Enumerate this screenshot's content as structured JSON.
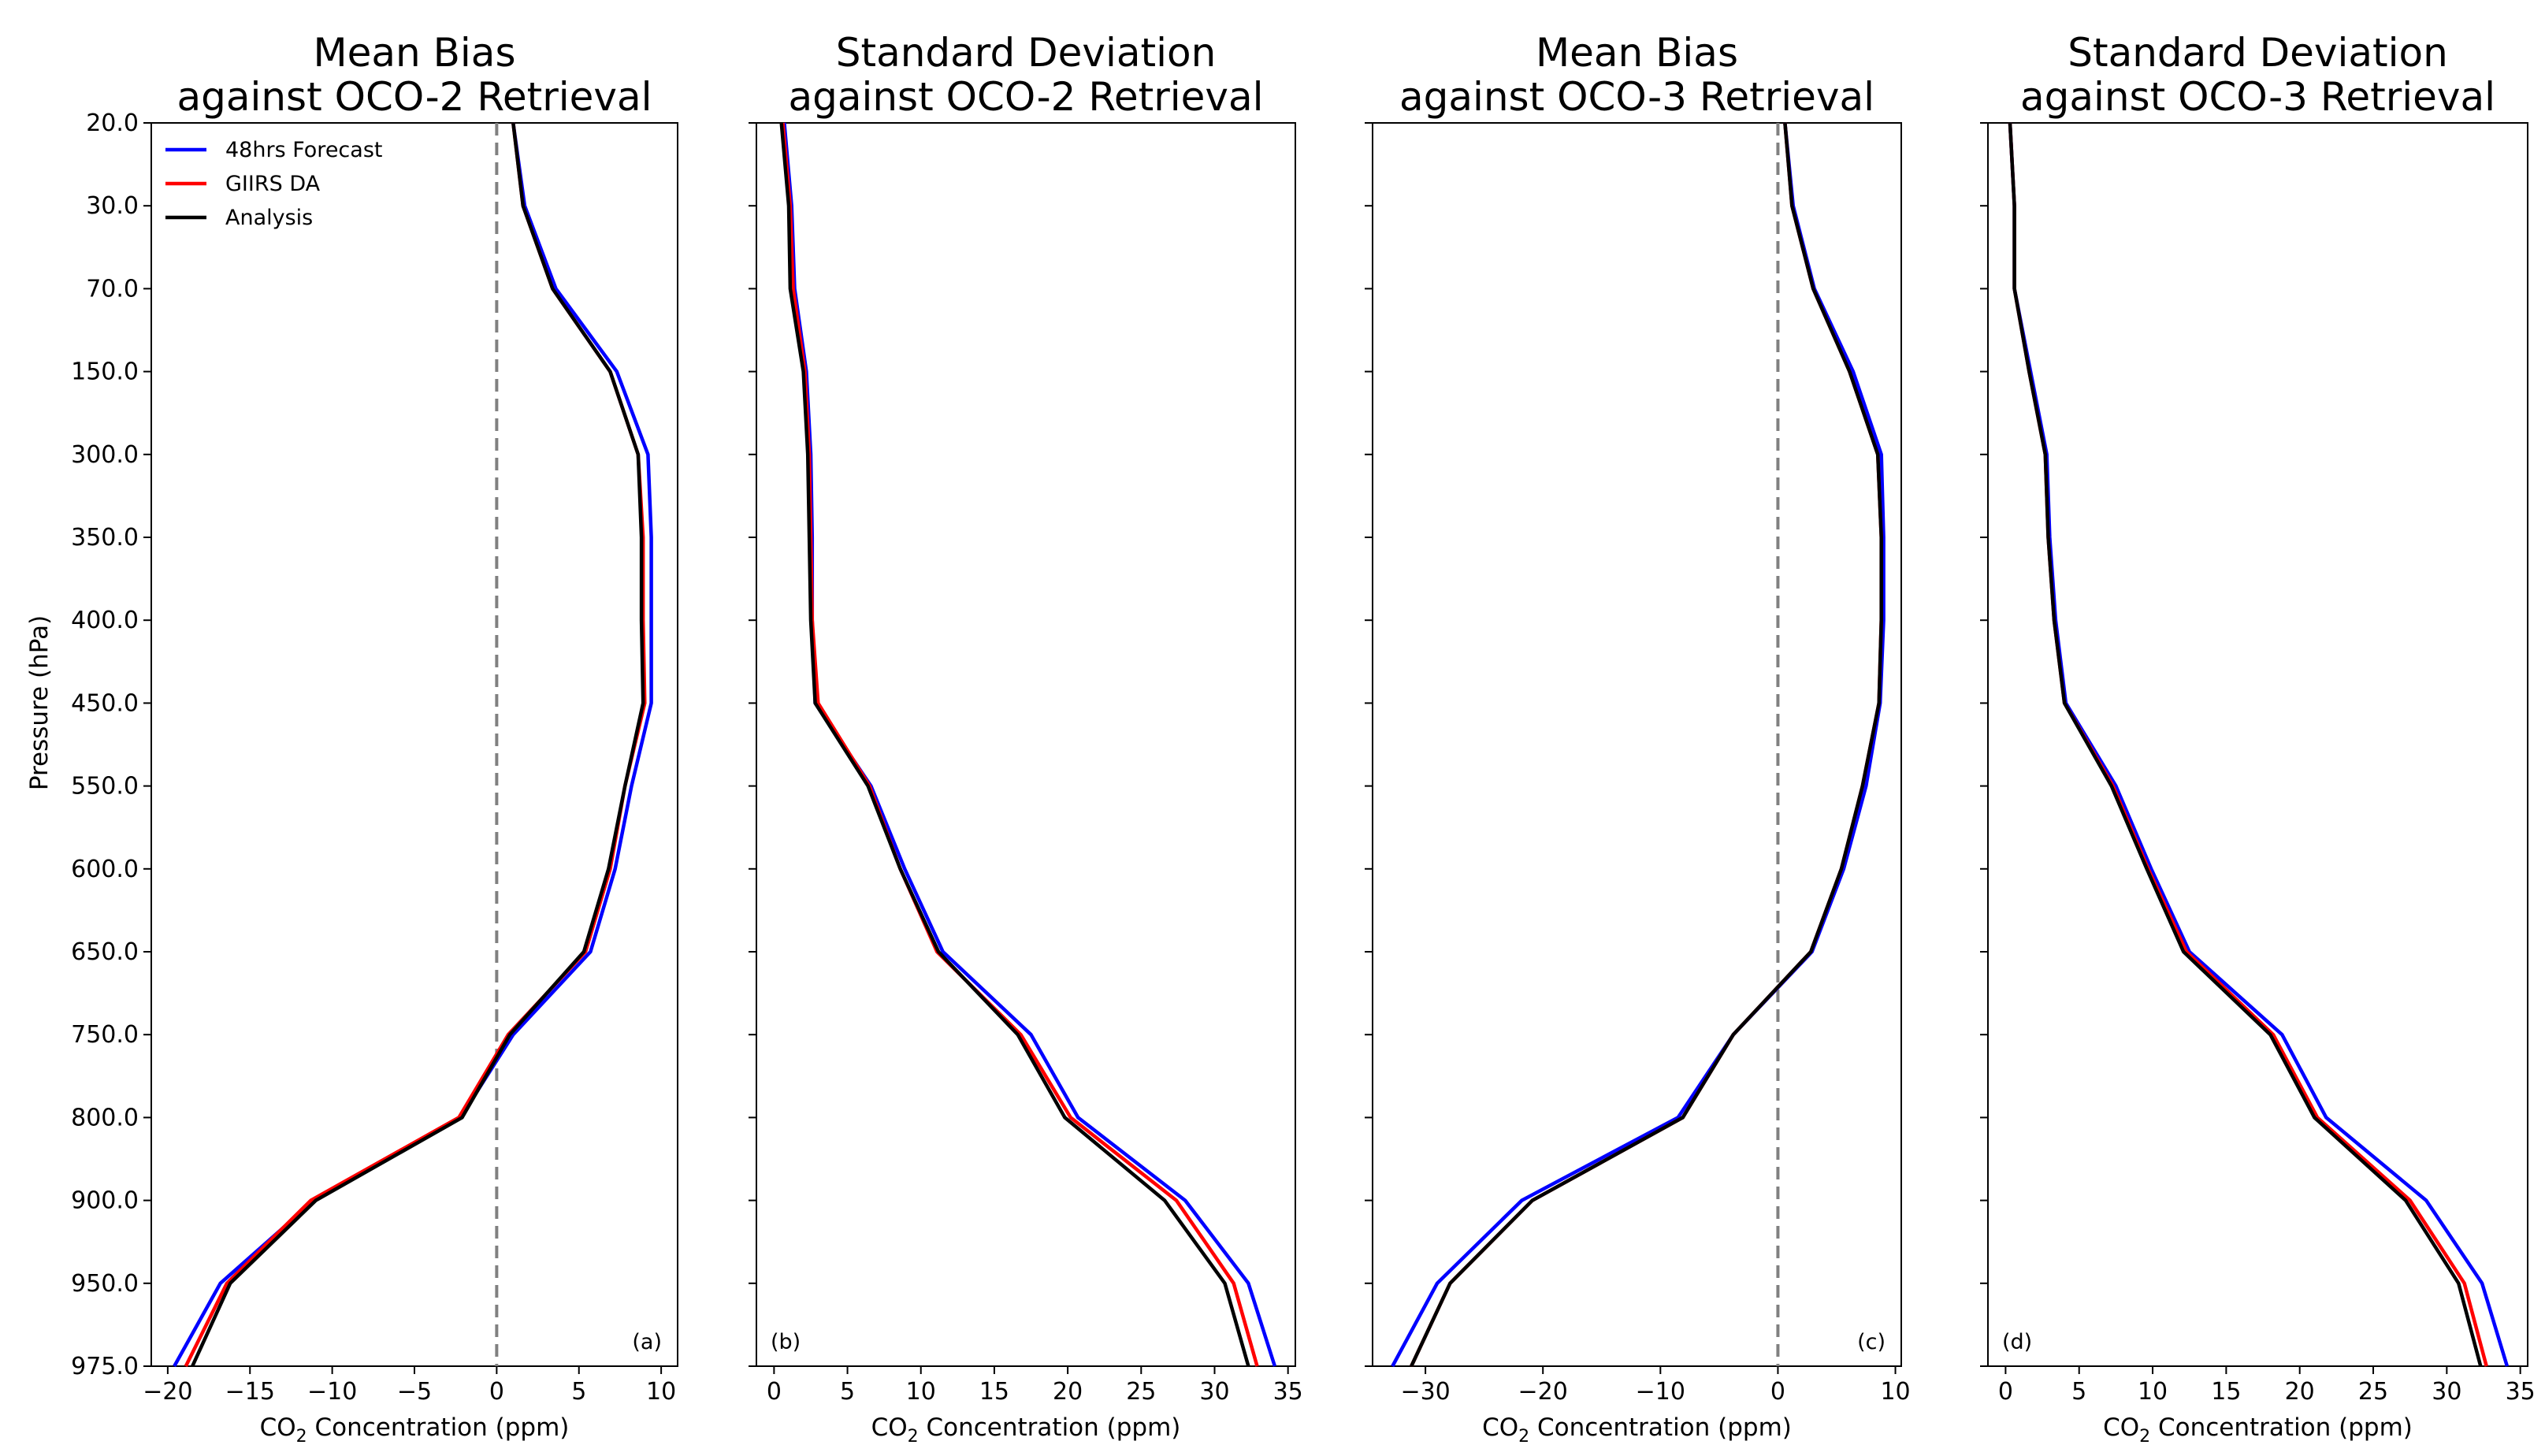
{
  "figure": {
    "ylabel": "Pressure (hPa)",
    "pressure_levels": [
      "20.0",
      "30.0",
      "70.0",
      "150.0",
      "300.0",
      "350.0",
      "400.0",
      "450.0",
      "550.0",
      "600.0",
      "650.0",
      "750.0",
      "800.0",
      "900.0",
      "950.0",
      "975.0"
    ],
    "legend": [
      {
        "label": "48hrs Forecast",
        "color": "#0000ff"
      },
      {
        "label": "GIIRS DA",
        "color": "#ff0000"
      },
      {
        "label": "Analysis",
        "color": "#000000"
      }
    ]
  },
  "chart_data": [
    {
      "type": "line",
      "title_line1": "Mean Bias",
      "title_line2": "against OCO-2 Retrieval",
      "panel_label": "(a)",
      "xlabel_prefix": "CO",
      "xlabel_sub": "2",
      "xlabel_suffix": " Concentration (ppm)",
      "xlim": [
        -21,
        11
      ],
      "xticks": [
        -20,
        -15,
        -10,
        -5,
        0,
        5,
        10
      ],
      "xtick_labels": [
        "−20",
        "−15",
        "−10",
        "−5",
        "0",
        "5",
        "10"
      ],
      "zero_line": true,
      "series": [
        {
          "name": "48hrs Forecast",
          "color": "#0000ff",
          "values": [
            1.0,
            1.7,
            3.6,
            7.3,
            9.2,
            9.4,
            9.4,
            9.4,
            8.2,
            7.2,
            5.7,
            1.0,
            -2.2,
            -11.1,
            -16.8,
            -19.6
          ]
        },
        {
          "name": "GIIRS DA",
          "color": "#ff0000",
          "values": [
            1.0,
            1.6,
            3.4,
            6.9,
            8.6,
            8.9,
            8.9,
            9.0,
            7.8,
            6.9,
            5.4,
            0.7,
            -2.3,
            -11.3,
            -16.4,
            -18.9
          ]
        },
        {
          "name": "Analysis",
          "color": "#000000",
          "values": [
            1.0,
            1.6,
            3.4,
            6.9,
            8.6,
            8.8,
            8.8,
            8.9,
            7.8,
            6.8,
            5.3,
            0.8,
            -2.1,
            -11.0,
            -16.2,
            -18.5
          ]
        }
      ]
    },
    {
      "type": "line",
      "title_line1": "Standard Deviation",
      "title_line2": "against OCO-2 Retrieval",
      "panel_label": "(b)",
      "xlabel_prefix": "CO",
      "xlabel_sub": "2",
      "xlabel_suffix": " Concentration (ppm)",
      "xlim": [
        -1.2,
        35.5
      ],
      "xticks": [
        0,
        5,
        10,
        15,
        20,
        25,
        30,
        35
      ],
      "xtick_labels": [
        "0",
        "5",
        "10",
        "15",
        "20",
        "25",
        "30",
        "35"
      ],
      "zero_line": false,
      "series": [
        {
          "name": "48hrs Forecast",
          "color": "#0000ff",
          "values": [
            0.7,
            1.2,
            1.4,
            2.2,
            2.5,
            2.6,
            2.6,
            2.8,
            6.6,
            8.9,
            11.5,
            17.5,
            20.7,
            28.0,
            32.3,
            34.1
          ]
        },
        {
          "name": "GIIRS DA",
          "color": "#ff0000",
          "values": [
            0.6,
            1.1,
            1.3,
            2.1,
            2.4,
            2.5,
            2.6,
            3.0,
            6.5,
            8.6,
            11.1,
            16.8,
            20.2,
            27.4,
            31.3,
            32.9
          ]
        },
        {
          "name": "Analysis",
          "color": "#000000",
          "values": [
            0.5,
            1.0,
            1.1,
            2.0,
            2.3,
            2.4,
            2.5,
            2.8,
            6.4,
            8.6,
            11.2,
            16.6,
            19.8,
            26.6,
            30.7,
            32.3
          ]
        }
      ]
    },
    {
      "type": "line",
      "title_line1": "Mean Bias",
      "title_line2": "against OCO-3 Retrieval",
      "panel_label": "(c)",
      "xlabel_prefix": "CO",
      "xlabel_sub": "2",
      "xlabel_suffix": " Concentration (ppm)",
      "xlim": [
        -34.5,
        10.5
      ],
      "xticks": [
        -30,
        -20,
        -10,
        0,
        10
      ],
      "xtick_labels": [
        "−30",
        "−20",
        "−10",
        "0",
        "10"
      ],
      "zero_line": true,
      "series": [
        {
          "name": "48hrs Forecast",
          "color": "#0000ff",
          "values": [
            0.6,
            1.3,
            3.1,
            6.4,
            8.8,
            9.0,
            9.0,
            8.7,
            7.5,
            5.6,
            2.9,
            -3.8,
            -8.5,
            -21.8,
            -29.0,
            -32.8
          ]
        },
        {
          "name": "GIIRS DA",
          "color": "#ff0000",
          "values": [
            0.6,
            1.2,
            3.0,
            6.1,
            8.5,
            8.8,
            8.8,
            8.6,
            7.2,
            5.4,
            2.8,
            -3.8,
            -8.1,
            -20.9,
            -27.9,
            -31.2
          ]
        },
        {
          "name": "Analysis",
          "color": "#000000",
          "values": [
            0.6,
            1.2,
            3.0,
            6.1,
            8.5,
            8.8,
            8.8,
            8.6,
            7.2,
            5.4,
            2.8,
            -3.8,
            -8.1,
            -20.9,
            -27.9,
            -31.2
          ]
        }
      ]
    },
    {
      "type": "line",
      "title_line1": "Standard Deviation",
      "title_line2": "against OCO-3 Retrieval",
      "panel_label": "(d)",
      "xlabel_prefix": "CO",
      "xlabel_sub": "2",
      "xlabel_suffix": " Concentration (ppm)",
      "xlim": [
        -1.2,
        35.5
      ],
      "xticks": [
        0,
        5,
        10,
        15,
        20,
        25,
        30,
        35
      ],
      "xtick_labels": [
        "0",
        "5",
        "10",
        "15",
        "20",
        "25",
        "30",
        "35"
      ],
      "zero_line": false,
      "series": [
        {
          "name": "48hrs Forecast",
          "color": "#0000ff",
          "values": [
            0.3,
            0.6,
            0.6,
            1.7,
            2.8,
            3.0,
            3.4,
            4.1,
            7.5,
            9.9,
            12.5,
            18.8,
            21.8,
            28.6,
            32.4,
            34.1
          ]
        },
        {
          "name": "GIIRS DA",
          "color": "#ff0000",
          "values": [
            0.3,
            0.6,
            0.6,
            1.6,
            2.7,
            2.9,
            3.3,
            4.0,
            7.3,
            9.7,
            12.3,
            18.2,
            21.2,
            27.5,
            31.2,
            32.7
          ]
        },
        {
          "name": "Analysis",
          "color": "#000000",
          "values": [
            0.3,
            0.6,
            0.6,
            1.6,
            2.7,
            2.9,
            3.3,
            4.0,
            7.2,
            9.6,
            12.1,
            18.0,
            21.0,
            27.2,
            30.8,
            32.3
          ]
        }
      ]
    }
  ]
}
